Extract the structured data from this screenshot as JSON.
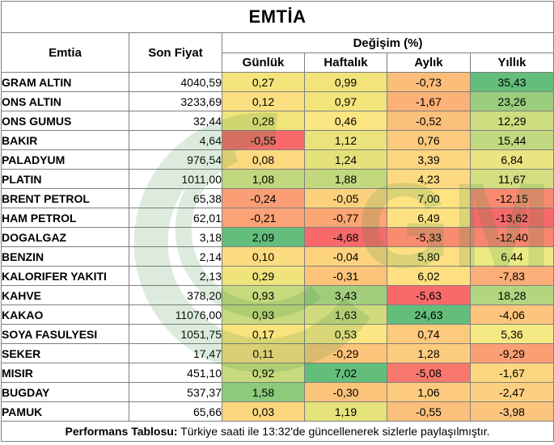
{
  "title": "EMTİA",
  "headers": {
    "emtia": "Emtia",
    "son_fiyat": "Son Fiyat",
    "degisim": "Değişim (%)",
    "gunluk": "Günlük",
    "haftalik": "Haftalık",
    "aylik": "Aylık",
    "yillik": "Yıllık"
  },
  "rows": [
    {
      "name": "GRAM ALTIN",
      "price": "4040,59",
      "gunluk": "0,27",
      "haftalik": "0,99",
      "aylik": "-0,73",
      "yillik": "35,43",
      "colors": [
        "#f3e57b",
        "#f2e47b",
        "#fbbd7a",
        "#63be7b"
      ]
    },
    {
      "name": "ONS ALTIN",
      "price": "3233,69",
      "gunluk": "0,12",
      "haftalik": "0,97",
      "aylik": "-1,67",
      "yillik": "23,26",
      "colors": [
        "#fbdf80",
        "#f2e47b",
        "#fbb177",
        "#9acd7e"
      ]
    },
    {
      "name": "ONS GUMUS",
      "price": "32,44",
      "gunluk": "0,28",
      "haftalik": "0,46",
      "aylik": "-0,52",
      "yillik": "12,29",
      "colors": [
        "#f1e47b",
        "#fbe683",
        "#fbc07b",
        "#cfdd81"
      ]
    },
    {
      "name": "BAKIR",
      "price": "4,64",
      "gunluk": "-0,55",
      "haftalik": "1,12",
      "aylik": "0,76",
      "yillik": "15,44",
      "colors": [
        "#f8696b",
        "#eae27b",
        "#fcca7d",
        "#c0d980"
      ]
    },
    {
      "name": "PALADYUM",
      "price": "976,54",
      "gunluk": "0,08",
      "haftalik": "1,24",
      "aylik": "3,39",
      "yillik": "6,84",
      "colors": [
        "#fcd97f",
        "#e4e17b",
        "#fcd680",
        "#eae482"
      ]
    },
    {
      "name": "PLATIN",
      "price": "1011,00",
      "gunluk": "1,08",
      "haftalik": "1,88",
      "aylik": "4,23",
      "yillik": "11,67",
      "colors": [
        "#c0d77d",
        "#c3d77d",
        "#fdd981",
        "#d3de81"
      ]
    },
    {
      "name": "BRENT PETROL",
      "price": "65,38",
      "gunluk": "-0,24",
      "haftalik": "-0,05",
      "aylik": "7,00",
      "yillik": "-12,15",
      "colors": [
        "#fb9e75",
        "#fcd17d",
        "#fee382",
        "#f98a70"
      ]
    },
    {
      "name": "HAM PETROL",
      "price": "62,01",
      "gunluk": "-0,21",
      "haftalik": "-0,77",
      "aylik": "6,49",
      "yillik": "-13,62",
      "colors": [
        "#fba276",
        "#fba673",
        "#fee282",
        "#f8696b"
      ]
    },
    {
      "name": "DOGALGAZ",
      "price": "3,18",
      "gunluk": "2,09",
      "haftalik": "-4,68",
      "aylik": "-5,33",
      "yillik": "-12,40",
      "colors": [
        "#63be7b",
        "#f8696b",
        "#f98b6f",
        "#f98570"
      ]
    },
    {
      "name": "BENZIN",
      "price": "2,14",
      "gunluk": "0,10",
      "haftalik": "-0,04",
      "aylik": "5,80",
      "yillik": "6,44",
      "colors": [
        "#fcdc80",
        "#fcd27d",
        "#fedf82",
        "#ecea83"
      ]
    },
    {
      "name": "KALORIFER YAKITI",
      "price": "2,13",
      "gunluk": "0,29",
      "haftalik": "-0,31",
      "aylik": "6,02",
      "yillik": "-7,83",
      "colors": [
        "#f0e37b",
        "#fcc379",
        "#fee082",
        "#fbae77"
      ]
    },
    {
      "name": "KAHVE",
      "price": "378,20",
      "gunluk": "0,93",
      "haftalik": "3,43",
      "aylik": "-5,63",
      "yillik": "18,28",
      "colors": [
        "#c8da7e",
        "#a2cd7c",
        "#f8696b",
        "#b2d57f"
      ]
    },
    {
      "name": "KAKAO",
      "price": "11076,00",
      "gunluk": "0,93",
      "haftalik": "1,63",
      "aylik": "24,63",
      "yillik": "-4,06",
      "colors": [
        "#c8da7e",
        "#cfdb7d",
        "#63be7b",
        "#fcc47d"
      ]
    },
    {
      "name": "SOYA FASULYESI",
      "price": "1051,75",
      "gunluk": "0,17",
      "haftalik": "0,53",
      "aylik": "0,74",
      "yillik": "5,36",
      "colors": [
        "#fae37c",
        "#fbe683",
        "#fcca7d",
        "#f5e984"
      ]
    },
    {
      "name": "SEKER",
      "price": "17,47",
      "gunluk": "0,11",
      "haftalik": "-0,29",
      "aylik": "1,28",
      "yillik": "-9,29",
      "colors": [
        "#fcdd80",
        "#fcc47a",
        "#fccc7e",
        "#fa9f73"
      ]
    },
    {
      "name": "MISIR",
      "price": "451,10",
      "gunluk": "0,92",
      "haftalik": "7,02",
      "aylik": "-5,08",
      "yillik": "-1,67",
      "colors": [
        "#c9da7e",
        "#63be7b",
        "#f9786d",
        "#fcd681"
      ]
    },
    {
      "name": "BUGDAY",
      "price": "537,37",
      "gunluk": "1,58",
      "haftalik": "-0,30",
      "aylik": "1,06",
      "yillik": "-2,47",
      "colors": [
        "#8dca7c",
        "#fcc37a",
        "#fccb7e",
        "#fcd080"
      ]
    },
    {
      "name": "PAMUK",
      "price": "65,66",
      "gunluk": "0,03",
      "haftalik": "1,19",
      "aylik": "-0,55",
      "yillik": "-3,98",
      "colors": [
        "#fcd67f",
        "#e5e17b",
        "#fbc07b",
        "#fcc57d"
      ]
    }
  ],
  "footer": {
    "label": "Performans Tablosu:",
    "text": " Türkiye saati ile 13:32'de güncellenerek sizlerle paylaşılmıştır."
  }
}
